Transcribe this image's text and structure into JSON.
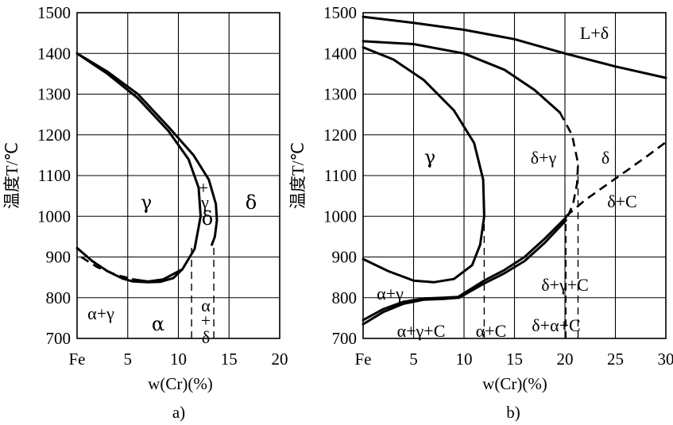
{
  "chart_data": [
    {
      "type": "line",
      "panel_label": "a)",
      "xlabel": "w(Cr)(%)",
      "ylabel": "温度T/℃",
      "xlim": [
        0,
        20
      ],
      "ylim": [
        700,
        1500
      ],
      "x_ticks": [
        "Fe",
        "5",
        "10",
        "15",
        "20"
      ],
      "y_ticks": [
        "1500",
        "1400",
        "1300",
        "1200",
        "1100",
        "1000",
        "900",
        "800",
        "700"
      ],
      "grid": true,
      "series": [
        {
          "style": "solid",
          "x": [
            0,
            3,
            6,
            9,
            11,
            12,
            12.2,
            11.6,
            10.4,
            8.5,
            7,
            5.5
          ],
          "y": [
            1400,
            1350,
            1290,
            1210,
            1140,
            1070,
            1000,
            920,
            870,
            845,
            840,
            845
          ]
        },
        {
          "style": "solid",
          "x": [
            0,
            3,
            6,
            9,
            11.5,
            13,
            13.7,
            13.8,
            13.6,
            13.3
          ],
          "y": [
            1400,
            1355,
            1300,
            1220,
            1150,
            1090,
            1030,
            990,
            950,
            930
          ]
        },
        {
          "style": "solid",
          "x": [
            0,
            1.5,
            3,
            4.5,
            5.5,
            7,
            8.2,
            9.5,
            10.4
          ],
          "y": [
            922,
            890,
            865,
            847,
            840,
            838,
            839,
            848,
            870
          ]
        },
        {
          "style": "dashed",
          "x": [
            0.4,
            2,
            4,
            6
          ],
          "y": [
            900,
            875,
            855,
            843
          ]
        },
        {
          "style": "thin-dashed",
          "x": [
            11.3,
            11.3
          ],
          "y": [
            700,
            930
          ]
        },
        {
          "style": "thin-dashed",
          "x": [
            13.5,
            13.5
          ],
          "y": [
            700,
            930
          ]
        }
      ],
      "annotations": [
        "γ",
        "δ",
        "+",
        "γ",
        "δ",
        "α+γ",
        "α",
        "α",
        "+",
        "δ"
      ]
    },
    {
      "type": "line",
      "panel_label": "b)",
      "xlabel": "w(Cr)(%)",
      "ylabel": "温度T/℃",
      "xlim": [
        0,
        30
      ],
      "ylim": [
        700,
        1500
      ],
      "x_ticks": [
        "Fe",
        "5",
        "10",
        "15",
        "20",
        "25",
        "30"
      ],
      "y_ticks": [
        "1500",
        "1400",
        "1300",
        "1200",
        "1100",
        "1000",
        "900",
        "800",
        "700"
      ],
      "grid": true,
      "series": [
        {
          "style": "solid",
          "x": [
            0,
            5,
            10,
            15,
            20,
            25,
            30
          ],
          "y": [
            1490,
            1475,
            1458,
            1435,
            1400,
            1368,
            1340
          ]
        },
        {
          "style": "solid",
          "x": [
            0,
            5,
            10,
            14,
            17,
            19.5
          ],
          "y": [
            1430,
            1423,
            1400,
            1360,
            1310,
            1255
          ]
        },
        {
          "style": "dashed",
          "x": [
            19.5,
            20.7,
            21.3,
            21.2,
            20.8,
            20.1
          ],
          "y": [
            1255,
            1200,
            1130,
            1080,
            1030,
            990
          ]
        },
        {
          "style": "solid",
          "x": [
            0,
            3,
            6,
            9,
            11,
            11.9,
            12,
            11.6,
            10.8,
            9,
            7,
            5,
            2.5,
            0
          ],
          "y": [
            1415,
            1385,
            1335,
            1260,
            1180,
            1090,
            1000,
            930,
            880,
            846,
            838,
            842,
            865,
            895
          ]
        },
        {
          "style": "solid",
          "x": [
            0,
            2,
            4,
            6,
            8,
            9.5
          ],
          "y": [
            735,
            765,
            785,
            795,
            797,
            800
          ]
        },
        {
          "style": "solid",
          "x": [
            0,
            2,
            4,
            6,
            8,
            9.5
          ],
          "y": [
            745,
            772,
            790,
            798,
            800,
            802
          ]
        },
        {
          "style": "solid",
          "x": [
            9.5,
            12,
            14,
            16,
            18,
            20.1
          ],
          "y": [
            800,
            835,
            860,
            890,
            935,
            990
          ]
        },
        {
          "style": "solid",
          "x": [
            9.5,
            12,
            14,
            16,
            18,
            20.1
          ],
          "y": [
            803,
            842,
            868,
            900,
            945,
            997
          ]
        },
        {
          "style": "dashed",
          "x": [
            20.1,
            22,
            24,
            26,
            28,
            30
          ],
          "y": [
            1000,
            1040,
            1075,
            1110,
            1145,
            1182
          ]
        },
        {
          "style": "thin-dashed",
          "x": [
            12,
            12
          ],
          "y": [
            700,
            1000
          ]
        },
        {
          "style": "thin-dashed",
          "x": [
            20.1,
            20.1
          ],
          "y": [
            700,
            990
          ]
        },
        {
          "style": "thin-dashed",
          "x": [
            21.3,
            21.3
          ],
          "y": [
            700,
            1130
          ]
        }
      ],
      "annotations": [
        "L+δ",
        "γ",
        "δ+γ",
        "δ",
        "δ+C",
        "α+γ",
        "δ+γ+C",
        "α+γ+C",
        "α+C",
        "δ+α+C"
      ]
    }
  ]
}
